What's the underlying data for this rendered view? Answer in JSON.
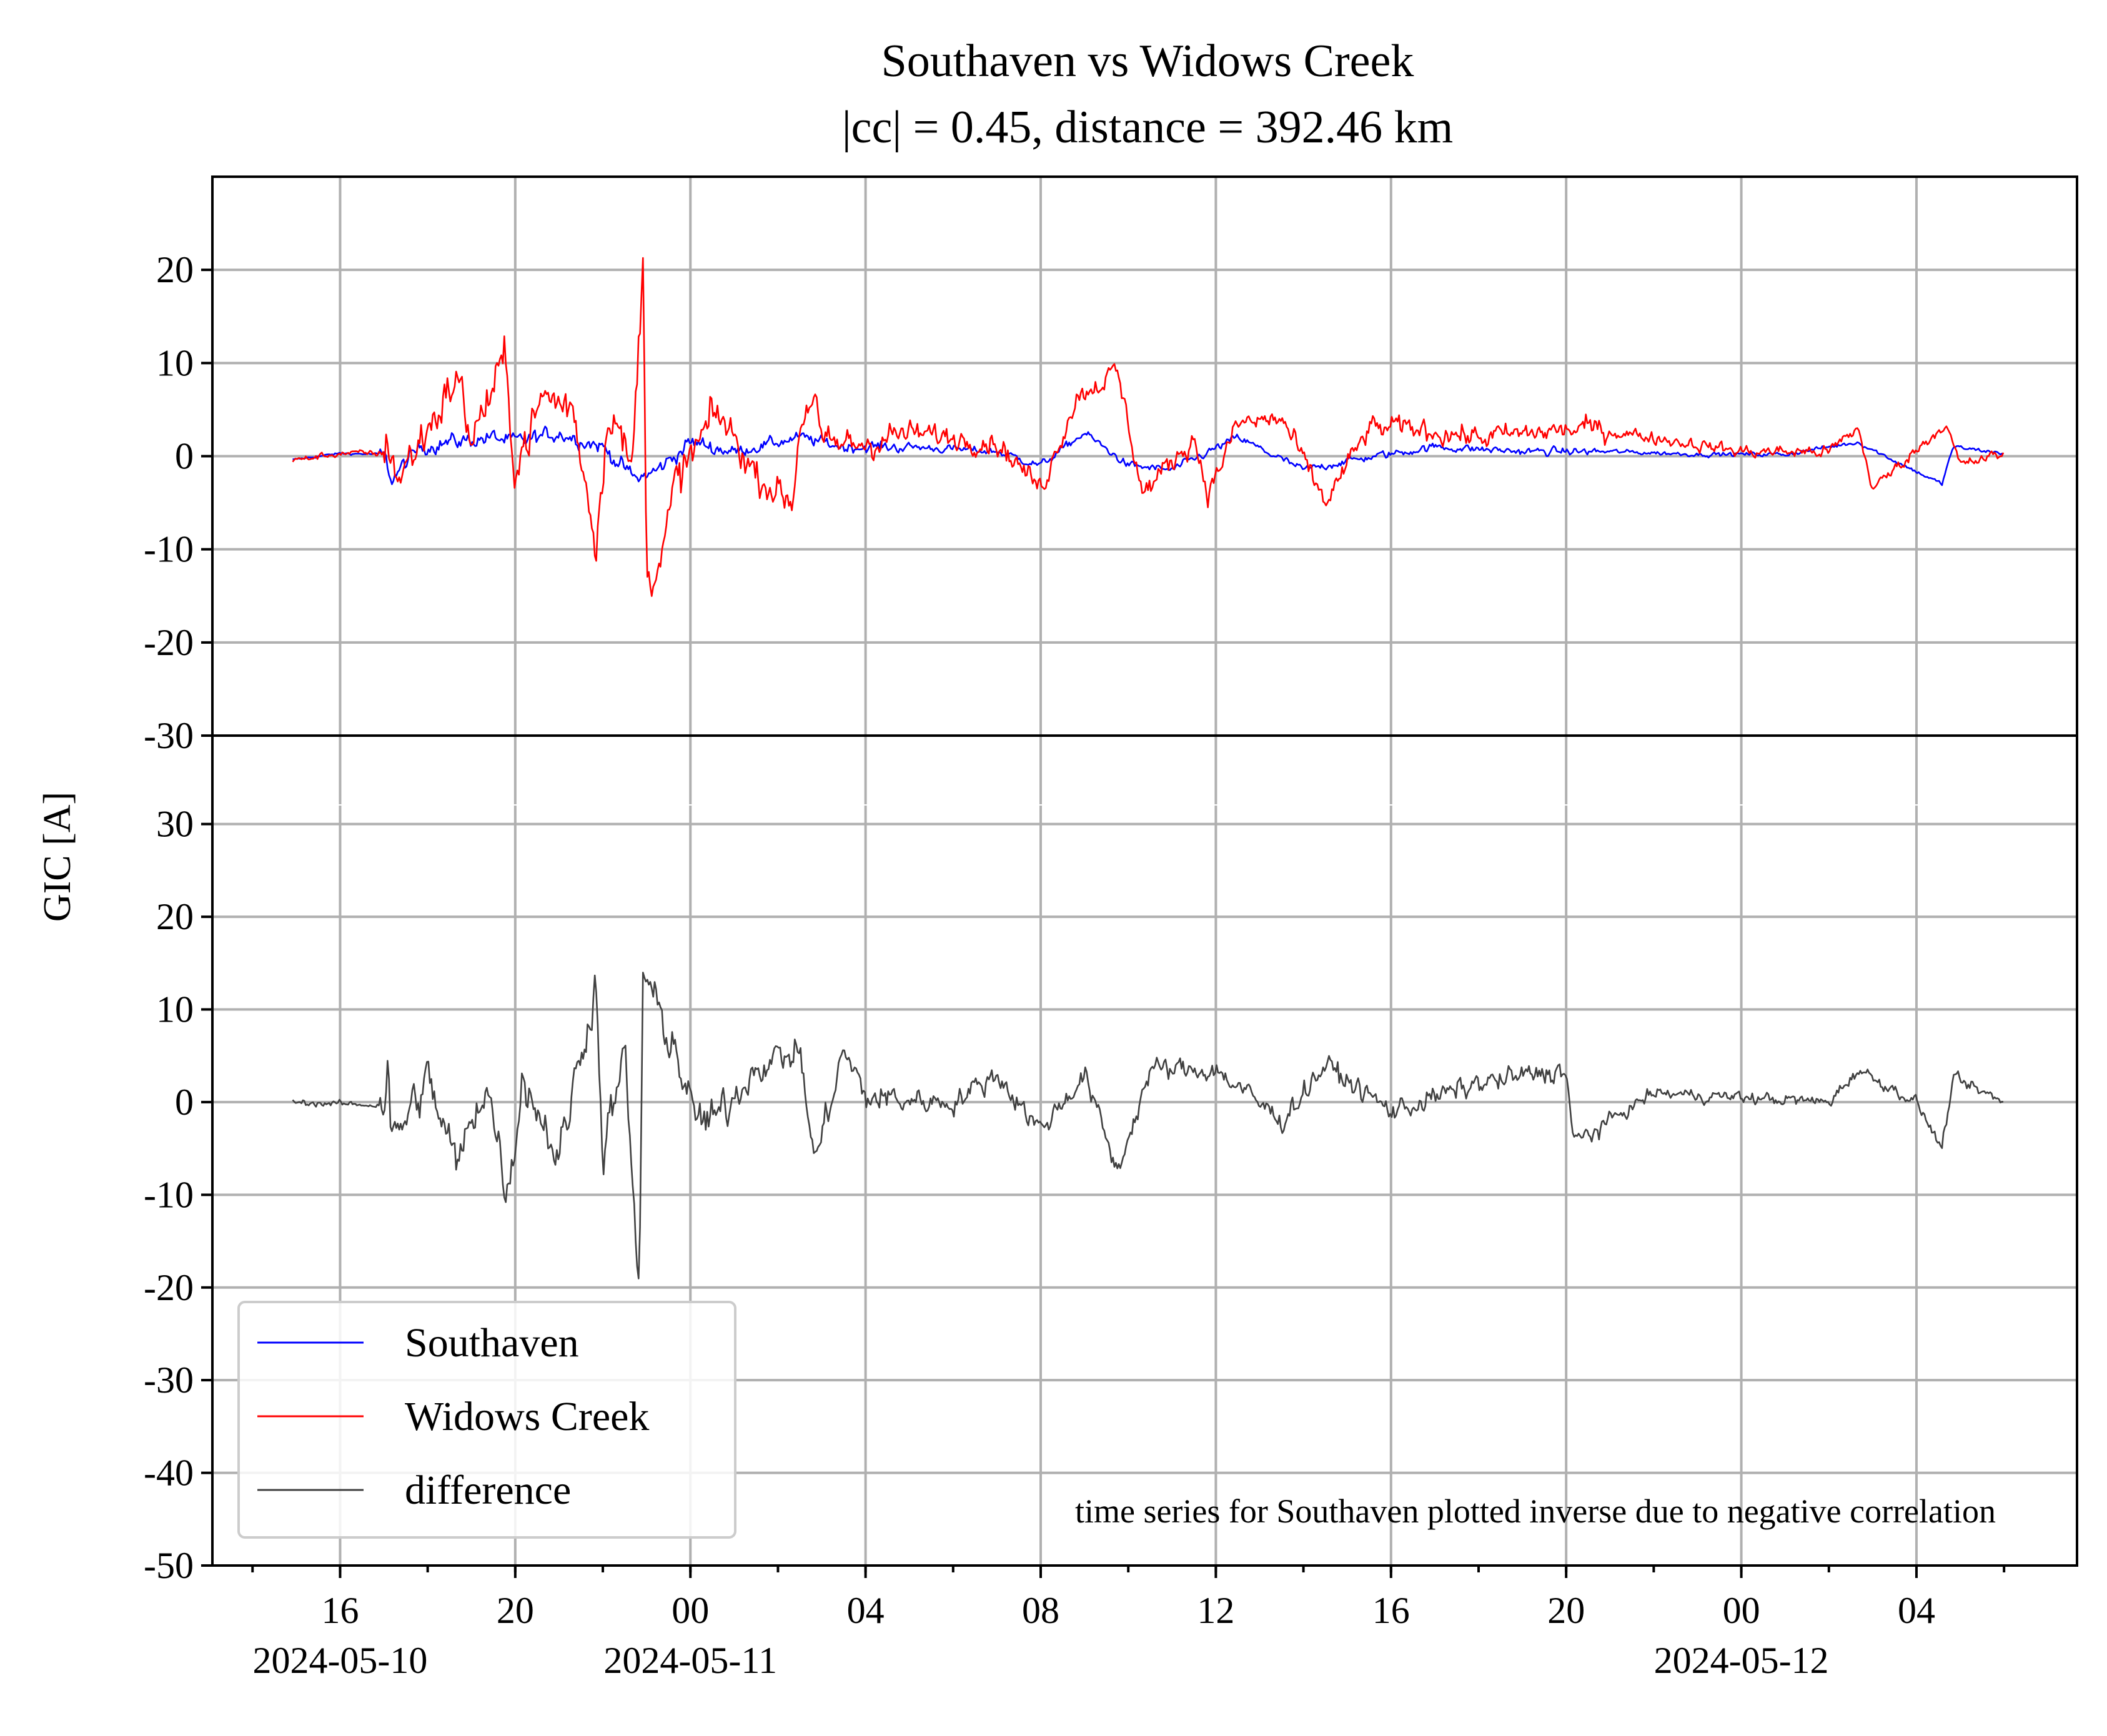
{
  "chart_data": {
    "type": "line",
    "title": "Southaven vs Widows Creek",
    "subtitle": "|cc| = 0.45, distance = 392.46 km",
    "ylabel": "GIC [A]",
    "annotation": "time series for Southaven plotted inverse due to negative correlation",
    "x_range": [
      "2024-05-10 13:05",
      "2024-05-12 07:40"
    ],
    "x_data_range": [
      "2024-05-10 14:55",
      "2024-05-12 06:00"
    ],
    "x_major_ticks": [
      {
        "time": "2024-05-10 16:00",
        "label": "16",
        "date_label": "2024-05-10"
      },
      {
        "time": "2024-05-10 20:00",
        "label": "20",
        "date_label": ""
      },
      {
        "time": "2024-05-11 00:00",
        "label": "00",
        "date_label": "2024-05-11"
      },
      {
        "time": "2024-05-11 04:00",
        "label": "04",
        "date_label": ""
      },
      {
        "time": "2024-05-11 08:00",
        "label": "08",
        "date_label": ""
      },
      {
        "time": "2024-05-11 12:00",
        "label": "12",
        "date_label": ""
      },
      {
        "time": "2024-05-11 16:00",
        "label": "16",
        "date_label": ""
      },
      {
        "time": "2024-05-11 20:00",
        "label": "20",
        "date_label": ""
      },
      {
        "time": "2024-05-12 00:00",
        "label": "00",
        "date_label": "2024-05-12"
      },
      {
        "time": "2024-05-12 04:00",
        "label": "04",
        "date_label": ""
      }
    ],
    "x_minor_tick_interval_hours": 2,
    "grid": true,
    "legend": {
      "placement": "lower-left",
      "entries": [
        {
          "name": "Southaven",
          "color": "#0000ff"
        },
        {
          "name": "Widows Creek",
          "color": "#ff0000"
        },
        {
          "name": "difference",
          "color": "#404040"
        }
      ]
    },
    "panels": [
      {
        "id": "top",
        "ylim": [
          -30,
          30
        ],
        "yticks": [
          "-30",
          "-20",
          "-10",
          "0",
          "10",
          "20"
        ],
        "series": [
          {
            "name": "Southaven",
            "color": "#0000ff",
            "points": [
              [
                "2024-05-10 14:55",
                -0.4
              ],
              [
                "2024-05-10 16:00",
                0.3
              ],
              [
                "2024-05-10 17:00",
                0.2
              ],
              [
                "2024-05-10 17:10",
                -2.5
              ],
              [
                "2024-05-10 17:50",
                1.0
              ],
              [
                "2024-05-10 18:30",
                1.5
              ],
              [
                "2024-05-10 19:30",
                2.0
              ],
              [
                "2024-05-10 20:00",
                1.5
              ],
              [
                "2024-05-10 21:00",
                2.5
              ],
              [
                "2024-05-10 22:00",
                1.0
              ],
              [
                "2024-05-10 22:45",
                -2.5
              ],
              [
                "2024-05-10 23:15",
                -1.5
              ],
              [
                "2024-05-11 00:00",
                1.5
              ],
              [
                "2024-05-11 01:00",
                0.5
              ],
              [
                "2024-05-11 02:30",
                2.0
              ],
              [
                "2024-05-11 03:30",
                1.0
              ],
              [
                "2024-05-11 05:00",
                1.0
              ],
              [
                "2024-05-11 07:00",
                0.5
              ],
              [
                "2024-05-11 08:00",
                -1.0
              ],
              [
                "2024-05-11 09:00",
                2.5
              ],
              [
                "2024-05-11 10:00",
                -1.0
              ],
              [
                "2024-05-11 11:00",
                -1.5
              ],
              [
                "2024-05-11 12:30",
                2.0
              ],
              [
                "2024-05-11 14:00",
                -1.5
              ],
              [
                "2024-05-11 15:00",
                -0.5
              ],
              [
                "2024-05-11 17:00",
                1.0
              ],
              [
                "2024-05-11 19:00",
                0.5
              ],
              [
                "2024-05-11 21:00",
                0.5
              ],
              [
                "2024-05-11 23:00",
                0.2
              ],
              [
                "2024-05-12 01:00",
                0.2
              ],
              [
                "2024-05-12 02:40",
                1.5
              ],
              [
                "2024-05-12 03:30",
                -0.5
              ],
              [
                "2024-05-12 04:35",
                -3.0
              ],
              [
                "2024-05-12 04:50",
                1.0
              ],
              [
                "2024-05-12 06:00",
                0.3
              ]
            ]
          },
          {
            "name": "Widows Creek",
            "color": "#ff0000",
            "points": [
              [
                "2024-05-10 14:55",
                -0.5
              ],
              [
                "2024-05-10 16:00",
                0.3
              ],
              [
                "2024-05-10 17:00",
                0.3
              ],
              [
                "2024-05-10 17:05",
                2.0
              ],
              [
                "2024-05-10 17:20",
                -2.5
              ],
              [
                "2024-05-10 18:00",
                3.0
              ],
              [
                "2024-05-10 18:40",
                8.5
              ],
              [
                "2024-05-10 19:00",
                2.0
              ],
              [
                "2024-05-10 19:45",
                10.0
              ],
              [
                "2024-05-10 20:00",
                -1.0
              ],
              [
                "2024-05-10 20:40",
                6.5
              ],
              [
                "2024-05-10 21:20",
                5.0
              ],
              [
                "2024-05-10 21:50",
                -9.0
              ],
              [
                "2024-05-10 22:10",
                6.0
              ],
              [
                "2024-05-10 22:40",
                -2.0
              ],
              [
                "2024-05-10 22:55",
                21.0
              ],
              [
                "2024-05-10 23:00",
                -12.0
              ],
              [
                "2024-05-10 23:20",
                -11.5
              ],
              [
                "2024-05-10 23:40",
                -3.0
              ],
              [
                "2024-05-11 00:20",
                2.5
              ],
              [
                "2024-05-11 00:40",
                4.5
              ],
              [
                "2024-05-11 01:30",
                -2.0
              ],
              [
                "2024-05-11 02:20",
                -5.0
              ],
              [
                "2024-05-11 02:30",
                3.5
              ],
              [
                "2024-05-11 02:50",
                7.0
              ],
              [
                "2024-05-11 03:00",
                1.0
              ],
              [
                "2024-05-11 04:00",
                1.5
              ],
              [
                "2024-05-11 05:00",
                2.5
              ],
              [
                "2024-05-11 07:00",
                1.5
              ],
              [
                "2024-05-11 08:00",
                -3.5
              ],
              [
                "2024-05-11 08:50",
                6.5
              ],
              [
                "2024-05-11 09:45",
                9.0
              ],
              [
                "2024-05-11 10:20",
                -4.0
              ],
              [
                "2024-05-11 11:30",
                2.0
              ],
              [
                "2024-05-11 11:50",
                -4.0
              ],
              [
                "2024-05-11 12:30",
                3.5
              ],
              [
                "2024-05-11 13:30",
                4.0
              ],
              [
                "2024-05-11 14:30",
                -5.0
              ],
              [
                "2024-05-11 15:30",
                3.0
              ],
              [
                "2024-05-11 16:30",
                3.0
              ],
              [
                "2024-05-11 18:00",
                2.0
              ],
              [
                "2024-05-11 20:30",
                3.0
              ],
              [
                "2024-05-11 22:00",
                2.0
              ],
              [
                "2024-05-12 00:00",
                0.5
              ],
              [
                "2024-05-12 02:00",
                0.5
              ],
              [
                "2024-05-12 02:40",
                3.0
              ],
              [
                "2024-05-12 03:00",
                -3.5
              ],
              [
                "2024-05-12 04:40",
                3.5
              ],
              [
                "2024-05-12 05:00",
                -1.0
              ],
              [
                "2024-05-12 06:00",
                0.3
              ]
            ]
          }
        ]
      },
      {
        "id": "bottom",
        "ylim": [
          -50,
          32
        ],
        "yticks": [
          "-50",
          "-40",
          "-30",
          "-20",
          "-10",
          "0",
          "10",
          "20",
          "30"
        ],
        "series": [
          {
            "name": "difference",
            "color": "#404040",
            "points": [
              [
                "2024-05-10 14:55",
                0.0
              ],
              [
                "2024-05-10 16:00",
                -0.2
              ],
              [
                "2024-05-10 17:00",
                -0.3
              ],
              [
                "2024-05-10 17:05",
                5.0
              ],
              [
                "2024-05-10 17:10",
                -4.5
              ],
              [
                "2024-05-10 18:00",
                2.5
              ],
              [
                "2024-05-10 18:40",
                -7.0
              ],
              [
                "2024-05-10 19:20",
                2.5
              ],
              [
                "2024-05-10 19:50",
                -10.0
              ],
              [
                "2024-05-10 20:10",
                3.0
              ],
              [
                "2024-05-10 21:00",
                -6.0
              ],
              [
                "2024-05-10 21:50",
                13.0
              ],
              [
                "2024-05-10 22:00",
                -5.5
              ],
              [
                "2024-05-10 22:30",
                5.0
              ],
              [
                "2024-05-10 22:50",
                -21.0
              ],
              [
                "2024-05-10 22:55",
                14.5
              ],
              [
                "2024-05-10 23:10",
                10.5
              ],
              [
                "2024-05-10 23:40",
                6.0
              ],
              [
                "2024-05-11 00:00",
                -1.0
              ],
              [
                "2024-05-11 00:30",
                -2.5
              ],
              [
                "2024-05-11 01:30",
                4.0
              ],
              [
                "2024-05-11 02:30",
                5.5
              ],
              [
                "2024-05-11 02:50",
                -6.5
              ],
              [
                "2024-05-11 03:30",
                5.5
              ],
              [
                "2024-05-11 04:00",
                0.5
              ],
              [
                "2024-05-11 06:00",
                0.0
              ],
              [
                "2024-05-11 07:00",
                3.0
              ],
              [
                "2024-05-11 08:00",
                -3.0
              ],
              [
                "2024-05-11 09:00",
                3.0
              ],
              [
                "2024-05-11 09:45",
                -7.5
              ],
              [
                "2024-05-11 10:30",
                3.5
              ],
              [
                "2024-05-11 12:00",
                3.5
              ],
              [
                "2024-05-11 13:30",
                -2.0
              ],
              [
                "2024-05-11 14:30",
                4.0
              ],
              [
                "2024-05-11 16:00",
                -1.0
              ],
              [
                "2024-05-11 18:00",
                2.0
              ],
              [
                "2024-05-11 20:00",
                3.5
              ],
              [
                "2024-05-11 20:10",
                -4.5
              ],
              [
                "2024-05-11 22:00",
                1.0
              ],
              [
                "2024-05-12 00:00",
                0.5
              ],
              [
                "2024-05-12 02:00",
                0.0
              ],
              [
                "2024-05-12 02:40",
                3.5
              ],
              [
                "2024-05-12 04:00",
                0.0
              ],
              [
                "2024-05-12 04:35",
                -5.0
              ],
              [
                "2024-05-12 04:50",
                2.5
              ],
              [
                "2024-05-12 06:00",
                0.0
              ]
            ]
          }
        ]
      }
    ]
  }
}
